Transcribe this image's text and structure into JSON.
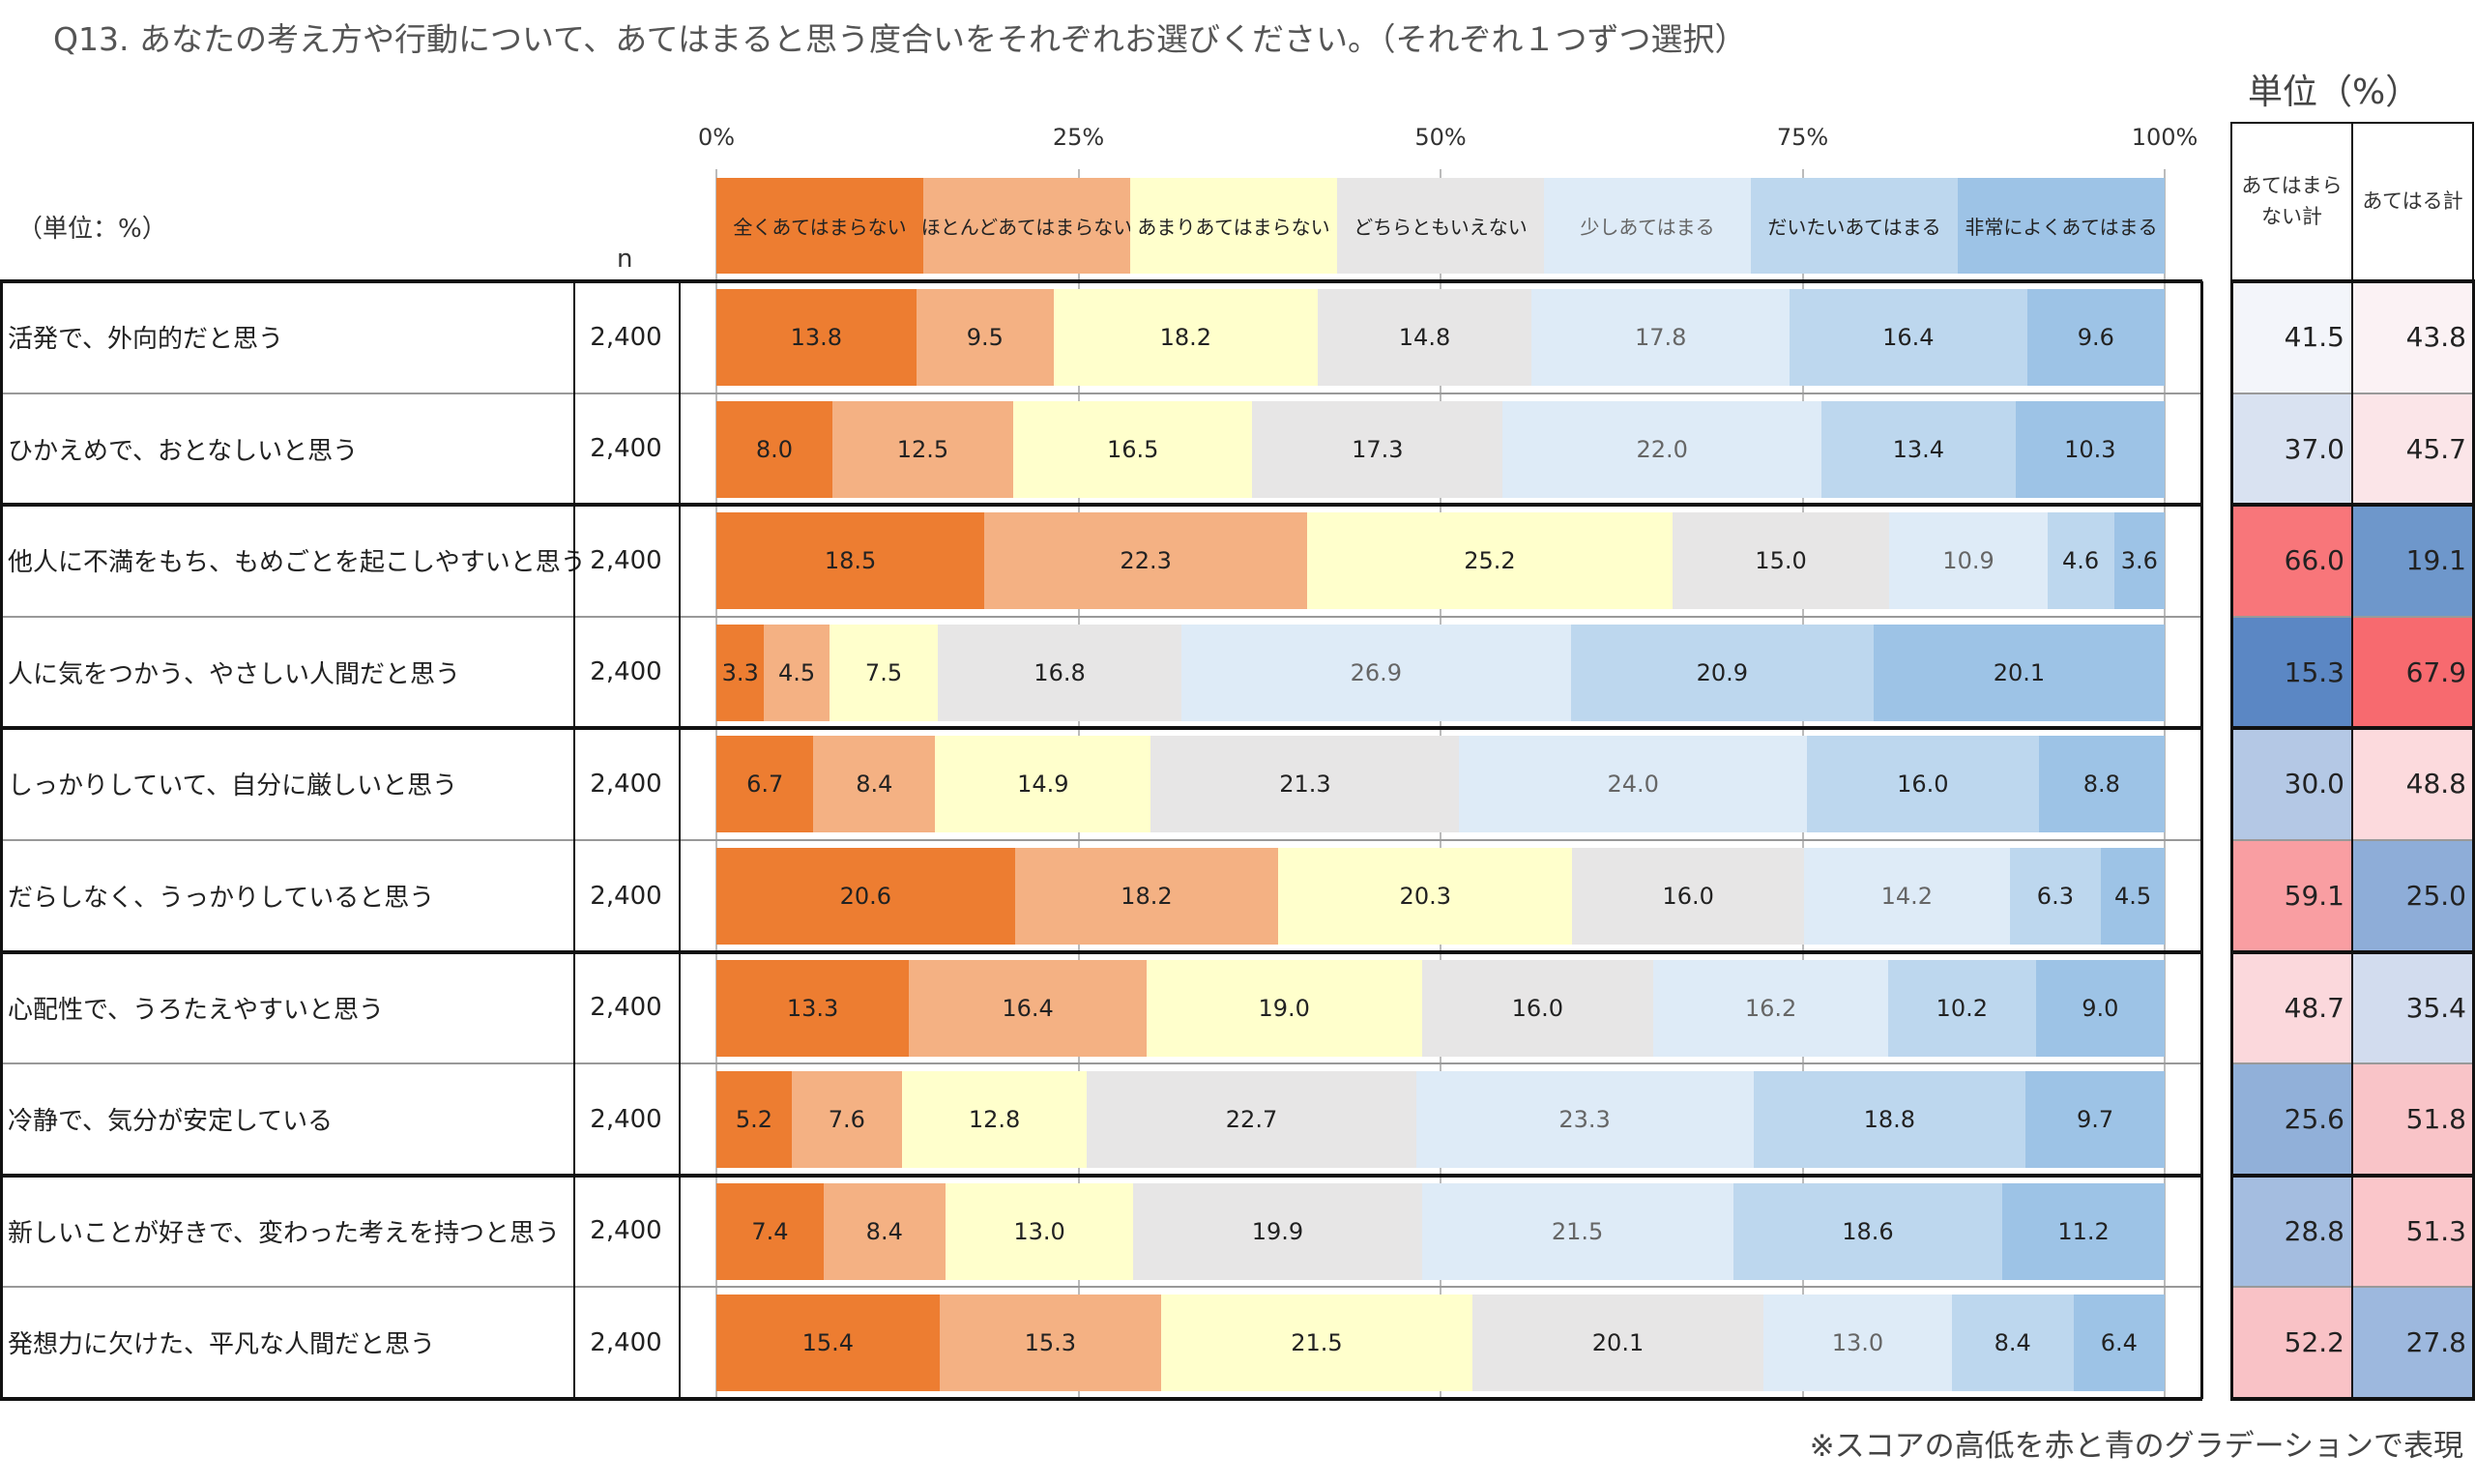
{
  "title": "Q13.  あなたの考え方や行動について、あてはまると思う度合いをそれぞれお選びください。（それぞれ１つずつ選択）",
  "unit_right": "単位（%）",
  "unit_left": "（単位：%）",
  "n_header": "n",
  "footnote": "※スコアの高低を赤と青のグラデーションで表現",
  "summary_headers": [
    "あてはまらない計",
    "あてはる計"
  ],
  "chart_data": {
    "type": "bar",
    "orientation": "horizontal",
    "stacked": "100%",
    "xlim": [
      0,
      100
    ],
    "x_ticks": [
      "0%",
      "25%",
      "50%",
      "75%",
      "100%"
    ],
    "grid": true,
    "legend_placement": "top",
    "series": [
      {
        "name": "全くあてはまらない",
        "color": "#ed7d31",
        "text_color": "#222222",
        "values": [
          13.8,
          8.0,
          18.5,
          3.3,
          6.7,
          20.6,
          13.3,
          5.2,
          7.4,
          15.4
        ]
      },
      {
        "name": "ほとんどあてはまらない",
        "color": "#f4b183",
        "text_color": "#222222",
        "values": [
          9.5,
          12.5,
          22.3,
          4.5,
          8.4,
          18.2,
          16.4,
          7.6,
          8.4,
          15.3
        ]
      },
      {
        "name": "あまりあてはまらない",
        "color": "#ffffcc",
        "text_color": "#222222",
        "values": [
          18.2,
          16.5,
          25.2,
          7.5,
          14.9,
          20.3,
          19.0,
          12.8,
          13.0,
          21.5
        ]
      },
      {
        "name": "どちらともいえない",
        "color": "#e7e6e6",
        "text_color": "#222222",
        "values": [
          14.8,
          17.3,
          15.0,
          16.8,
          21.3,
          16.0,
          16.0,
          22.7,
          19.9,
          20.1
        ]
      },
      {
        "name": "少しあてはまる",
        "color": "#deebf7",
        "text_color": "#666666",
        "values": [
          17.8,
          22.0,
          10.9,
          26.9,
          24.0,
          14.2,
          16.2,
          23.3,
          21.5,
          13.0
        ]
      },
      {
        "name": "だいたいあてはまる",
        "color": "#bdd7ee",
        "text_color": "#222222",
        "values": [
          16.4,
          13.4,
          4.6,
          20.9,
          16.0,
          6.3,
          10.2,
          18.8,
          18.6,
          8.4
        ]
      },
      {
        "name": "非常によくあてはまる",
        "color": "#9dc3e6",
        "text_color": "#222222",
        "values": [
          9.6,
          10.3,
          3.6,
          20.1,
          8.8,
          4.5,
          9.0,
          9.7,
          11.2,
          6.4
        ]
      }
    ],
    "categories": [
      "活発で、外向的だと思う",
      "ひかえめで、おとなしいと思う",
      "他人に不満をもち、もめごとを起こしやすいと思う",
      "人に気をつかう、やさしい人間だと思う",
      "しっかりしていて、自分に厳しいと思う",
      "だらしなく、うっかりしていると思う",
      "心配性で、うろたえやすいと思う",
      "冷静で、気分が安定している",
      "新しいことが好きで、変わった考えを持つと思う",
      "発想力に欠けた、平凡な人間だと思う"
    ],
    "n": [
      "2,400",
      "2,400",
      "2,400",
      "2,400",
      "2,400",
      "2,400",
      "2,400",
      "2,400",
      "2,400",
      "2,400"
    ],
    "summary": {
      "not_apply_total": [
        "41.5",
        "37.0",
        "66.0",
        "15.3",
        "30.0",
        "59.1",
        "48.7",
        "25.6",
        "28.8",
        "52.2"
      ],
      "apply_total": [
        "43.8",
        "45.7",
        "19.1",
        "67.9",
        "48.8",
        "25.0",
        "35.4",
        "51.8",
        "51.3",
        "27.8"
      ],
      "not_apply_colors": [
        "#f3f5fa",
        "#d9e2f1",
        "#f8767a",
        "#5b87c4",
        "#b4c8e5",
        "#f99ea2",
        "#fbd8dc",
        "#91b0d9",
        "#a4bde0",
        "#f9c2c6"
      ],
      "apply_colors": [
        "#fbf2f4",
        "#fbe5e8",
        "#6e97cb",
        "#f76a6f",
        "#fcdadd",
        "#8eadd8",
        "#d2dcee",
        "#f9c4c8",
        "#fac6ca",
        "#9db8de"
      ]
    }
  }
}
